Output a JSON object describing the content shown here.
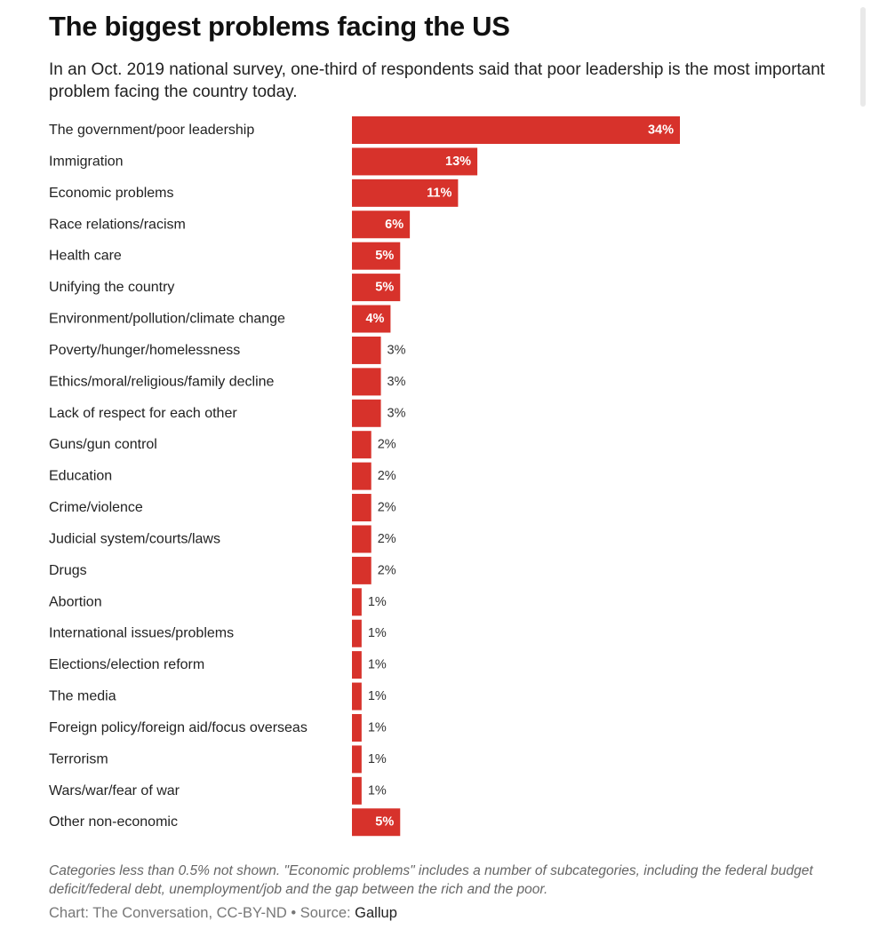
{
  "header": {
    "title": "The biggest problems facing the US",
    "subtitle": "In an Oct. 2019 national survey, one-third of respondents said that poor leadership is the most important problem facing the country today."
  },
  "chart_data": {
    "type": "bar",
    "orientation": "horizontal",
    "bar_color": "#d7322b",
    "value_suffix": "%",
    "categories": [
      "The government/poor leadership",
      "Immigration",
      "Economic problems",
      "Race relations/racism",
      "Health care",
      "Unifying the country",
      "Environment/pollution/climate change",
      "Poverty/hunger/homelessness",
      "Ethics/moral/religious/family decline",
      "Lack of respect for each other",
      "Guns/gun control",
      "Education",
      "Crime/violence",
      "Judicial system/courts/laws",
      "Drugs",
      "Abortion",
      "International issues/problems",
      "Elections/election reform",
      "The media",
      "Foreign policy/foreign aid/focus overseas",
      "Terrorism",
      "Wars/war/fear of war",
      "Other non-economic"
    ],
    "values": [
      34,
      13,
      11,
      6,
      5,
      5,
      4,
      3,
      3,
      3,
      2,
      2,
      2,
      2,
      2,
      1,
      1,
      1,
      1,
      1,
      1,
      1,
      5
    ],
    "xlim": [
      0,
      34
    ],
    "grid": false,
    "legend": "none"
  },
  "footer": {
    "note": "Categories less than 0.5% not shown. \"Economic problems\" includes a number of subcategories, including the federal budget deficit/federal debt, unemployment/job and the gap between the rich and the poor.",
    "credit": "Chart: The Conversation, CC-BY-ND • Source: ",
    "source": "Gallup"
  }
}
